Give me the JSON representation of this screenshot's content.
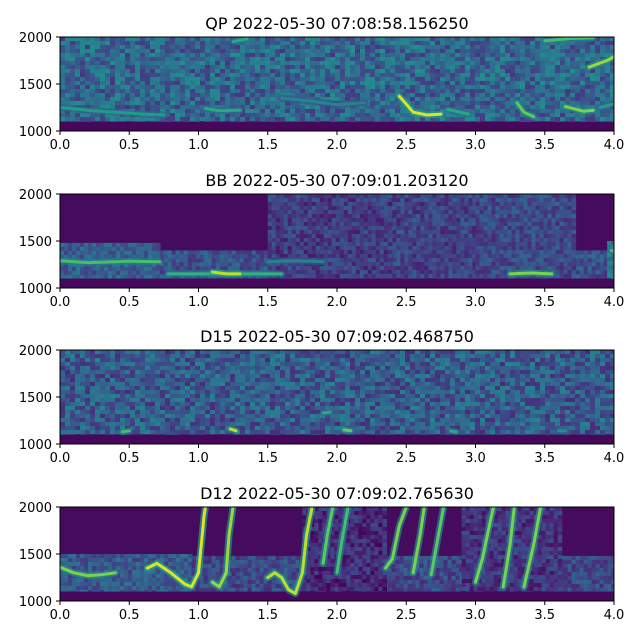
{
  "chart_data": [
    {
      "type": "heatmap",
      "title": "QP 2022-05-30 07:08:58.156250",
      "xlim": [
        0.0,
        4.0
      ],
      "ylim": [
        1000,
        2000
      ],
      "x_ticks": [
        "0.0",
        "0.5",
        "1.0",
        "1.5",
        "2.0",
        "2.5",
        "3.0",
        "3.5",
        "4.0"
      ],
      "y_ticks": [
        "1000",
        "1500",
        "2000"
      ],
      "style": "noise",
      "background_intensity": 0.28,
      "noise_floor_hz": 1100,
      "tracks": [
        {
          "points": [
            [
              0.0,
              1250
            ],
            [
              0.2,
              1220
            ],
            [
              0.4,
              1200
            ],
            [
              0.6,
              1180
            ],
            [
              0.75,
              1170
            ]
          ],
          "intensity": 0.55
        },
        {
          "points": [
            [
              1.05,
              1240
            ],
            [
              1.15,
              1215
            ],
            [
              1.3,
              1220
            ]
          ],
          "intensity": 0.6
        },
        {
          "points": [
            [
              1.6,
              1350
            ],
            [
              1.8,
              1320
            ],
            [
              2.0,
              1280
            ],
            [
              2.2,
              1300
            ]
          ],
          "intensity": 0.45
        },
        {
          "points": [
            [
              2.45,
              1370
            ],
            [
              2.55,
              1200
            ],
            [
              2.65,
              1170
            ],
            [
              2.75,
              1180
            ]
          ],
          "intensity": 0.95
        },
        {
          "points": [
            [
              2.8,
              1230
            ],
            [
              2.95,
              1180
            ]
          ],
          "intensity": 0.6
        },
        {
          "points": [
            [
              3.3,
              1300
            ],
            [
              3.35,
              1200
            ],
            [
              3.42,
              1150
            ]
          ],
          "intensity": 0.75
        },
        {
          "points": [
            [
              3.65,
              1260
            ],
            [
              3.78,
              1210
            ],
            [
              3.85,
              1220
            ]
          ],
          "intensity": 0.8
        },
        {
          "points": [
            [
              3.9,
              1250
            ],
            [
              4.0,
              1290
            ]
          ],
          "intensity": 0.55
        },
        {
          "points": [
            [
              3.82,
              1680
            ],
            [
              3.95,
              1750
            ],
            [
              4.0,
              1790
            ]
          ],
          "intensity": 0.85
        },
        {
          "points": [
            [
              3.5,
              1960
            ],
            [
              3.7,
              1985
            ],
            [
              3.85,
              1990
            ]
          ],
          "intensity": 0.7
        },
        {
          "points": [
            [
              1.25,
              1950
            ],
            [
              1.35,
              1980
            ]
          ],
          "intensity": 0.6
        }
      ]
    },
    {
      "type": "heatmap",
      "title": "BB 2022-05-30 07:09:01.203120",
      "xlim": [
        0.0,
        4.0
      ],
      "ylim": [
        1000,
        2000
      ],
      "x_ticks": [
        "0.0",
        "0.5",
        "1.0",
        "1.5",
        "2.0",
        "2.5",
        "3.0",
        "3.5",
        "4.0"
      ],
      "y_ticks": [
        "1000",
        "1500",
        "2000"
      ],
      "style": "bands",
      "background_intensity": 0.03,
      "noise_floor_hz": 1100,
      "bands": [
        {
          "x0": 0.0,
          "x1": 0.72,
          "ytop": 1480,
          "intensity": 0.3
        },
        {
          "x0": 0.72,
          "x1": 4.0,
          "ytop": 1400,
          "intensity": 0.25
        },
        {
          "x0": 1.5,
          "x1": 2.4,
          "ytop": 2000,
          "intensity": 0.18
        },
        {
          "x0": 2.4,
          "x1": 3.0,
          "ytop": 2000,
          "intensity": 0.2
        },
        {
          "x0": 3.0,
          "x1": 3.7,
          "ytop": 2000,
          "intensity": 0.22
        },
        {
          "x0": 3.95,
          "x1": 4.0,
          "ytop": 1500,
          "intensity": 0.4
        }
      ],
      "tracks": [
        {
          "points": [
            [
              0.0,
              1290
            ],
            [
              0.2,
              1270
            ],
            [
              0.4,
              1280
            ],
            [
              0.5,
              1285
            ],
            [
              0.72,
              1280
            ]
          ],
          "intensity": 0.7
        },
        {
          "points": [
            [
              0.78,
              1150
            ],
            [
              1.0,
              1150
            ],
            [
              1.25,
              1150
            ],
            [
              1.6,
              1150
            ]
          ],
          "intensity": 0.65
        },
        {
          "points": [
            [
              1.1,
              1170
            ],
            [
              1.2,
              1150
            ],
            [
              1.3,
              1150
            ]
          ],
          "intensity": 0.9
        },
        {
          "points": [
            [
              1.5,
              1280
            ],
            [
              1.7,
              1290
            ],
            [
              1.9,
              1280
            ]
          ],
          "intensity": 0.45
        },
        {
          "points": [
            [
              3.25,
              1150
            ],
            [
              3.4,
              1160
            ],
            [
              3.55,
              1150
            ]
          ],
          "intensity": 0.8
        },
        {
          "points": [
            [
              3.98,
              1400
            ],
            [
              4.0,
              1390
            ]
          ],
          "intensity": 0.7
        }
      ]
    },
    {
      "type": "heatmap",
      "title": "D15 2022-05-30 07:09:02.468750",
      "xlim": [
        0.0,
        4.0
      ],
      "ylim": [
        1000,
        2000
      ],
      "x_ticks": [
        "0.0",
        "0.5",
        "1.0",
        "1.5",
        "2.0",
        "2.5",
        "3.0",
        "3.5",
        "4.0"
      ],
      "y_ticks": [
        "1000",
        "1500",
        "2000"
      ],
      "style": "noise",
      "background_intensity": 0.24,
      "noise_floor_hz": 1100,
      "tracks": [
        {
          "points": [
            [
              0.45,
              1130
            ],
            [
              0.5,
              1140
            ]
          ],
          "intensity": 0.7
        },
        {
          "points": [
            [
              1.23,
              1160
            ],
            [
              1.27,
              1140
            ]
          ],
          "intensity": 0.9
        },
        {
          "points": [
            [
              1.9,
              1330
            ],
            [
              1.95,
              1340
            ]
          ],
          "intensity": 0.6
        },
        {
          "points": [
            [
              2.05,
              1150
            ],
            [
              2.1,
              1140
            ]
          ],
          "intensity": 0.75
        },
        {
          "points": [
            [
              2.82,
              1140
            ],
            [
              2.86,
              1130
            ]
          ],
          "intensity": 0.6
        },
        {
          "points": [
            [
              3.6,
              1140
            ],
            [
              3.65,
              1140
            ]
          ],
          "intensity": 0.5
        }
      ]
    },
    {
      "type": "heatmap",
      "title": "D12 2022-05-30 07:09:02.765630",
      "xlim": [
        0.0,
        4.0
      ],
      "ylim": [
        1000,
        2000
      ],
      "x_ticks": [
        "0.0",
        "0.5",
        "1.0",
        "1.5",
        "2.0",
        "2.5",
        "3.0",
        "3.5",
        "4.0"
      ],
      "y_ticks": [
        "1000",
        "1500",
        "2000"
      ],
      "style": "bands",
      "background_intensity": 0.03,
      "noise_floor_hz": 1100,
      "bands": [
        {
          "x0": 0.0,
          "x1": 0.95,
          "ytop": 1500,
          "intensity": 0.28
        },
        {
          "x0": 0.95,
          "x1": 4.0,
          "ytop": 1480,
          "intensity": 0.22
        },
        {
          "x0": 1.75,
          "x1": 2.35,
          "ytop": 2000,
          "intensity": 0.12
        },
        {
          "x0": 2.9,
          "x1": 3.6,
          "ytop": 2000,
          "intensity": 0.15
        }
      ],
      "tracks": [
        {
          "points": [
            [
              0.0,
              1360
            ],
            [
              0.1,
              1300
            ],
            [
              0.2,
              1270
            ],
            [
              0.3,
              1280
            ],
            [
              0.4,
              1300
            ]
          ],
          "intensity": 0.8
        },
        {
          "points": [
            [
              0.63,
              1350
            ],
            [
              0.7,
              1400
            ],
            [
              0.8,
              1300
            ],
            [
              0.9,
              1180
            ],
            [
              0.95,
              1150
            ],
            [
              1.0,
              1300
            ],
            [
              1.02,
              1600
            ],
            [
              1.04,
              1900
            ],
            [
              1.05,
              2000
            ]
          ],
          "intensity": 0.95
        },
        {
          "points": [
            [
              1.1,
              1200
            ],
            [
              1.15,
              1150
            ],
            [
              1.2,
              1300
            ],
            [
              1.22,
              1700
            ],
            [
              1.25,
              2000
            ]
          ],
          "intensity": 0.85
        },
        {
          "points": [
            [
              1.5,
              1250
            ],
            [
              1.55,
              1300
            ],
            [
              1.6,
              1250
            ],
            [
              1.65,
              1120
            ],
            [
              1.7,
              1080
            ],
            [
              1.75,
              1300
            ],
            [
              1.78,
              1700
            ],
            [
              1.82,
              2000
            ]
          ],
          "intensity": 0.9
        },
        {
          "points": [
            [
              1.9,
              1400
            ],
            [
              1.93,
              1700
            ],
            [
              1.97,
              2000
            ]
          ],
          "intensity": 0.75
        },
        {
          "points": [
            [
              2.0,
              1300
            ],
            [
              2.03,
              1600
            ],
            [
              2.08,
              2000
            ]
          ],
          "intensity": 0.7
        },
        {
          "points": [
            [
              2.35,
              1350
            ],
            [
              2.4,
              1450
            ],
            [
              2.45,
              1800
            ],
            [
              2.5,
              2000
            ]
          ],
          "intensity": 0.8
        },
        {
          "points": [
            [
              2.55,
              1300
            ],
            [
              2.6,
              1700
            ],
            [
              2.63,
              2000
            ]
          ],
          "intensity": 0.8
        },
        {
          "points": [
            [
              2.68,
              1280
            ],
            [
              2.72,
              1600
            ],
            [
              2.77,
              2000
            ]
          ],
          "intensity": 0.75
        },
        {
          "points": [
            [
              3.0,
              1200
            ],
            [
              3.05,
              1450
            ],
            [
              3.1,
              1800
            ],
            [
              3.13,
              2000
            ]
          ],
          "intensity": 0.8
        },
        {
          "points": [
            [
              3.2,
              1150
            ],
            [
              3.25,
              1600
            ],
            [
              3.28,
              2000
            ]
          ],
          "intensity": 0.8
        },
        {
          "points": [
            [
              3.35,
              1150
            ],
            [
              3.42,
              1600
            ],
            [
              3.47,
              2000
            ]
          ],
          "intensity": 0.8
        }
      ]
    }
  ],
  "colors": {
    "viridis": [
      "#440154",
      "#482878",
      "#3e4989",
      "#31688e",
      "#26828e",
      "#1f9e89",
      "#35b779",
      "#6ece58",
      "#b5de2b",
      "#fde725"
    ]
  }
}
